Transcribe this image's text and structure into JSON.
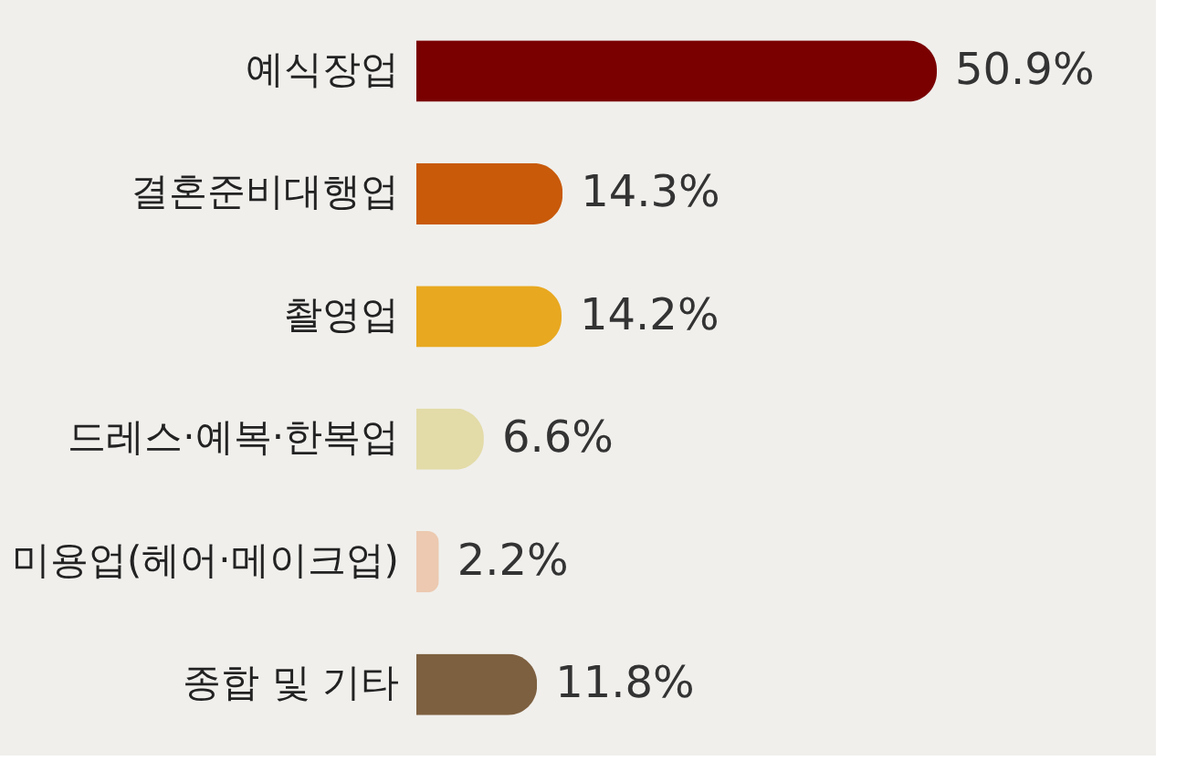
{
  "chart_data": {
    "type": "bar",
    "orientation": "horizontal",
    "categories": [
      "예식장업",
      "결혼준비대행업",
      "촬영업",
      "드레스·예복·한복업",
      "미용업(헤어·메이크업)",
      "종합 및 기타"
    ],
    "values": [
      50.9,
      14.3,
      14.2,
      6.6,
      2.2,
      11.8
    ],
    "value_labels": [
      "50.9%",
      "14.3%",
      "14.2%",
      "6.6%",
      "2.2%",
      "11.8%"
    ],
    "colors": [
      "#7a0000",
      "#c85a0a",
      "#e8a820",
      "#e3dba8",
      "#ecc9b0",
      "#7d6040"
    ]
  }
}
